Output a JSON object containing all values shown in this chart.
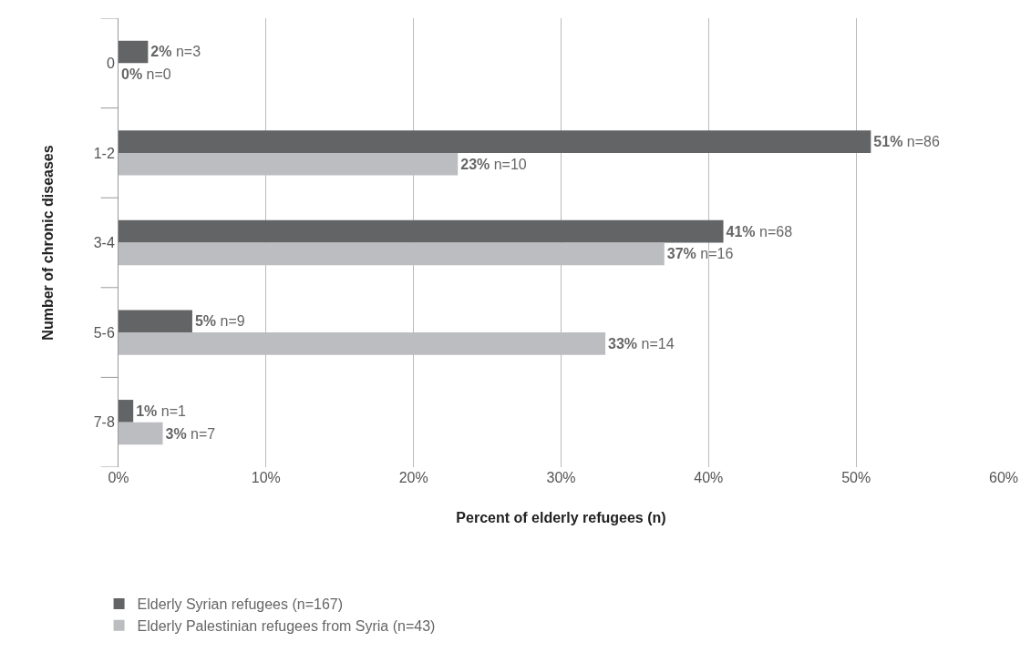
{
  "chart_data": {
    "type": "bar",
    "orientation": "horizontal",
    "xlabel": "Percent of elderly refugees (n)",
    "ylabel": "Number of chronic diseases",
    "categories": [
      "0",
      "1-2",
      "3-4",
      "5-6",
      "7-8"
    ],
    "series": [
      {
        "name": "Elderly Syrian refugees (n=167)",
        "color": "#636466",
        "values": [
          2,
          51,
          41,
          5,
          1
        ],
        "value_labels": [
          "2% n=3",
          "51% n=86",
          "41% n=68",
          "5% n=9",
          "1% n=1"
        ]
      },
      {
        "name": "Elderly Palestinian refugees from Syria (n=43)",
        "color": "#bcbdc0",
        "values": [
          0,
          23,
          37,
          33,
          3
        ],
        "value_labels": [
          "0% n=0",
          "23% n=10",
          "37% n=16",
          "33% n=14",
          "3% n=7"
        ]
      }
    ],
    "xlim": [
      0,
      60
    ],
    "xticks": [
      {
        "value": 0,
        "label": "0%"
      },
      {
        "value": 10,
        "label": "10%"
      },
      {
        "value": 20,
        "label": "20%"
      },
      {
        "value": 30,
        "label": "30%"
      },
      {
        "value": 40,
        "label": "40%"
      },
      {
        "value": 50,
        "label": "50%"
      },
      {
        "value": 60,
        "label": "60%"
      }
    ],
    "grid": "x",
    "legend": "bottom left"
  }
}
